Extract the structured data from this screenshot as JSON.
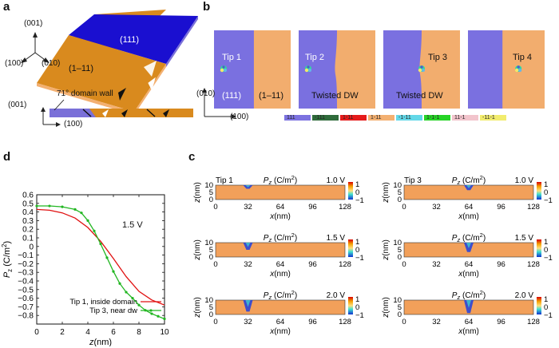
{
  "panels": {
    "a": {
      "label": "a",
      "axes": {
        "z": "(001)",
        "x": "(100)",
        "y": "(010)"
      },
      "domains": {
        "top": "(111)",
        "bottom": "(1–11)"
      },
      "wall_caption": "71° domain wall",
      "side_axes": {
        "z": "(001)",
        "x": "(100)"
      },
      "colors": {
        "blue": "#1a0fd0",
        "orange": "#d98a1e"
      }
    },
    "b": {
      "label": "b",
      "axes": {
        "y": "(010)",
        "x": "(100)"
      },
      "tiles": [
        {
          "tip": "Tip 1",
          "left": "(111)",
          "right": "(1–11)"
        },
        {
          "tip": "Tip 2",
          "caption": "Twisted DW"
        },
        {
          "tip": "Tip 3",
          "caption": "Twisted DW"
        },
        {
          "tip": "Tip 4"
        }
      ],
      "legend": [
        {
          "label": "111",
          "color": "#7c72e0"
        },
        {
          "label": "-111",
          "color": "#2f6b3b"
        },
        {
          "label": "1-11",
          "color": "#e51b1b"
        },
        {
          "label": "1-11",
          "color": "#f3b071"
        },
        {
          "label": "-1-11",
          "color": "#63d8e8"
        },
        {
          "label": "1-1-1",
          "color": "#26d426"
        },
        {
          "label": "11-1",
          "color": "#f2c4cc"
        },
        {
          "label": "-11-1",
          "color": "#f2ec6e"
        }
      ]
    },
    "c": {
      "label": "c",
      "quantity": "P",
      "quantity_sub": "z",
      "quantity_unit": "(C/m",
      "quantity_unit_sup": "2",
      "quantity_unit_close": ")",
      "xlabel_var": "x",
      "xlabel_unit": "(nm)",
      "ylabel_var": "z",
      "ylabel_unit": "(nm)",
      "xticks": [
        "0",
        "32",
        "64",
        "96",
        "128"
      ],
      "yticks": [
        "10",
        "5",
        "0"
      ],
      "cbar_ticks": [
        "1",
        "0",
        "−1"
      ],
      "maps": [
        {
          "tip": "Tip 1",
          "voltage": "1.0 V",
          "tip_x": 32,
          "depth": 0.25
        },
        {
          "tip": "Tip 3",
          "voltage": "1.0 V",
          "tip_x": 64,
          "depth": 0.35
        },
        {
          "tip": "",
          "voltage": "1.5 V",
          "tip_x": 32,
          "depth": 0.5
        },
        {
          "tip": "",
          "voltage": "1.5 V",
          "tip_x": 64,
          "depth": 0.65
        },
        {
          "tip": "",
          "voltage": "2.0 V",
          "tip_x": 32,
          "depth": 0.8
        },
        {
          "tip": "",
          "voltage": "2.0 V",
          "tip_x": 64,
          "depth": 0.9
        }
      ]
    },
    "d": {
      "label": "d",
      "annotation": "1.5 V"
    }
  },
  "chart_data": {
    "type": "line",
    "title": "",
    "xlabel": "z(nm)",
    "ylabel": "Pz (C/m2)",
    "xlim": [
      0,
      10
    ],
    "ylim": [
      -0.9,
      0.6
    ],
    "xticks": [
      0,
      2,
      4,
      6,
      8,
      10
    ],
    "yticks": [
      0.6,
      0.5,
      0.4,
      0.3,
      0.2,
      0.1,
      0,
      -0.1,
      -0.2,
      -0.3,
      -0.4,
      -0.5,
      -0.6,
      -0.7,
      -0.8
    ],
    "legend_position": "bottom-right",
    "series": [
      {
        "name": "Tip 1, inside domain",
        "color": "#e01010",
        "marker": "none",
        "x": [
          0,
          1,
          2,
          3,
          4,
          5,
          6,
          7,
          8,
          9,
          10
        ],
        "y": [
          0.43,
          0.42,
          0.39,
          0.33,
          0.22,
          0.06,
          -0.14,
          -0.35,
          -0.52,
          -0.62,
          -0.68
        ]
      },
      {
        "name": "Tip 3, near dw",
        "color": "#22b622",
        "marker": "dot",
        "x": [
          0,
          1,
          2,
          3,
          3.5,
          4,
          4.5,
          5,
          5.5,
          6,
          6.5,
          7,
          7.5,
          8,
          8.5,
          9,
          9.5,
          10
        ],
        "y": [
          0.47,
          0.47,
          0.46,
          0.43,
          0.39,
          0.3,
          0.18,
          0.03,
          -0.13,
          -0.29,
          -0.43,
          -0.53,
          -0.6,
          -0.68,
          -0.74,
          -0.78,
          -0.81,
          -0.84
        ]
      }
    ]
  }
}
